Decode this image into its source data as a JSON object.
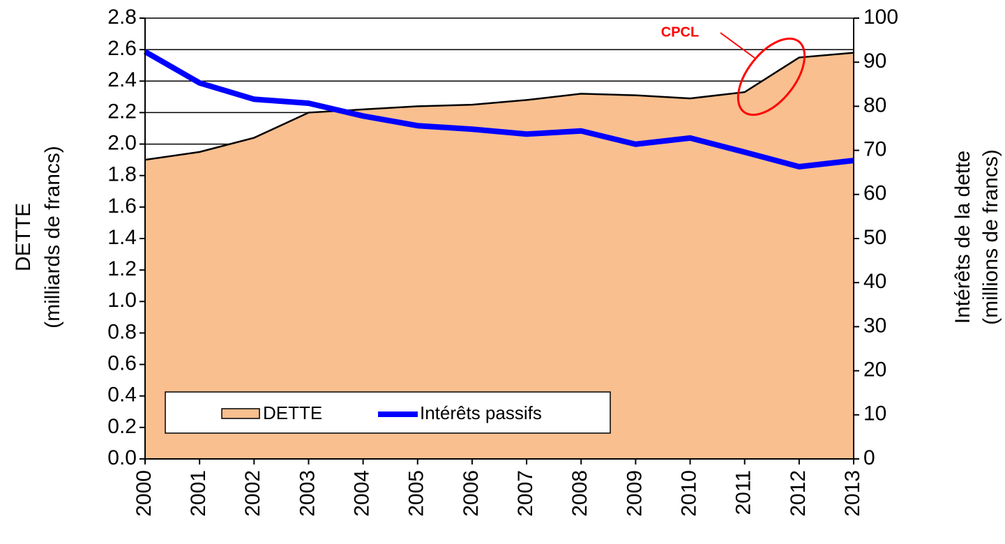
{
  "chart_data": {
    "type": "area_line",
    "categories": [
      "2000",
      "2001",
      "2002",
      "2003",
      "2004",
      "2005",
      "2006",
      "2007",
      "2008",
      "2009",
      "2010",
      "2011",
      "2012",
      "2013"
    ],
    "series": [
      {
        "name": "DETTE",
        "color": "#f9bf8f",
        "type": "area",
        "values": [
          1.9,
          1.95,
          2.04,
          2.2,
          2.22,
          2.24,
          2.25,
          2.28,
          2.32,
          2.31,
          2.29,
          2.33,
          2.55,
          2.58
        ]
      },
      {
        "name": "Intérêts passifs",
        "color": "#0000ff",
        "type": "line",
        "axis": "y2",
        "values": [
          92.4,
          85.3,
          81.6,
          80.7,
          77.8,
          75.6,
          74.8,
          73.7,
          74.4,
          71.4,
          72.8,
          69.6,
          66.3,
          67.7
        ]
      }
    ],
    "ylabel": [
      "DETTE",
      "(milliards de francs)"
    ],
    "y2label": [
      "Intérêts de la dette",
      "(millions de francs)"
    ],
    "ylim": [
      0,
      2.8
    ],
    "yticks": [
      {
        "value": 0,
        "label": "0.0"
      },
      0.2,
      0.4,
      0.6,
      0.8,
      {
        "value": 1,
        "label": "1.0"
      },
      1.2,
      1.4,
      1.6,
      1.8,
      {
        "value": 2,
        "label": "2.0"
      },
      2.2,
      2.4,
      2.6,
      2.8
    ],
    "y2lim": [
      0,
      100
    ],
    "y2ticks": [
      0,
      10,
      20,
      30,
      40,
      50,
      60,
      70,
      80,
      90,
      100
    ],
    "annotations": [
      "CPCL"
    ],
    "grid": true,
    "legend": "lower left"
  }
}
